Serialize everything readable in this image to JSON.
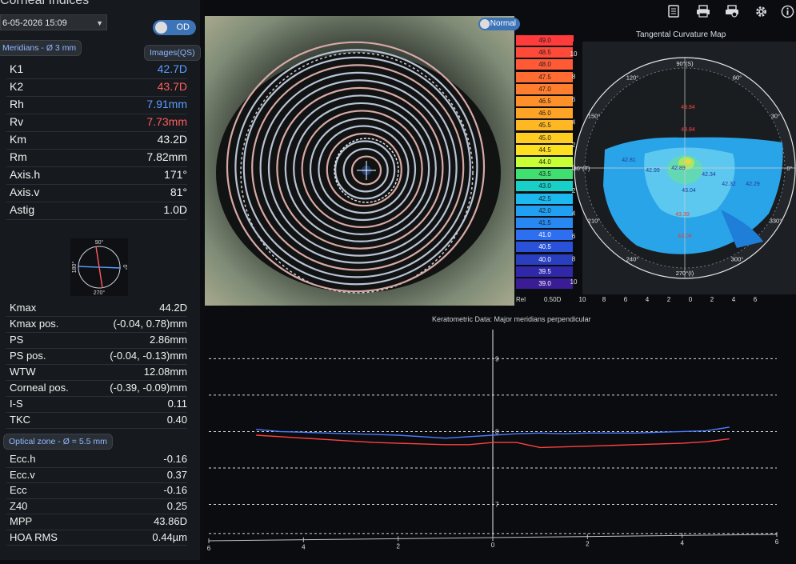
{
  "header": {
    "title": "Corneal Indices",
    "date": "6-05-2026 15:09",
    "eye_toggle": "OD"
  },
  "meridians": {
    "label": "Meridians - Ø 3 mm",
    "images_button": "Images(QS)"
  },
  "k_values": [
    {
      "label": "K1",
      "value": "42.7D",
      "color": "#5b9dff"
    },
    {
      "label": "K2",
      "value": "43.7D",
      "color": "#ff5d5d"
    },
    {
      "label": "Rh",
      "value": "7.91mm",
      "color": "#5b9dff"
    },
    {
      "label": "Rv",
      "value": "7.73mm",
      "color": "#ff5d5d"
    },
    {
      "label": "Km",
      "value": "43.2D",
      "color": "#f2f2f2"
    },
    {
      "label": "Rm",
      "value": "7.82mm",
      "color": "#f2f2f2"
    },
    {
      "label": "Axis.h",
      "value": "171°",
      "color": "#f2f2f2"
    },
    {
      "label": "Axis.v",
      "value": "81°",
      "color": "#f2f2f2"
    },
    {
      "label": "Astig",
      "value": "1.0D",
      "color": "#f2f2f2"
    }
  ],
  "axis_diagram": {
    "top": "90°",
    "bottom": "270°",
    "left": "180°",
    "right": "0°"
  },
  "shape_indices": [
    {
      "label": "Kmax",
      "value": "44.2D"
    },
    {
      "label": "Kmax pos.",
      "value": "(-0.04, 0.78)mm"
    },
    {
      "label": "PS",
      "value": "2.86mm"
    },
    {
      "label": "PS pos.",
      "value": "(-0.04, -0.13)mm"
    },
    {
      "label": "WTW",
      "value": "12.08mm"
    },
    {
      "label": "Corneal pos.",
      "value": "(-0.39, -0.09)mm"
    },
    {
      "label": "I-S",
      "value": "0.11"
    },
    {
      "label": "TKC",
      "value": "0.40"
    }
  ],
  "optical_zone": {
    "label": "Optical zone - Ø = 5.5 mm"
  },
  "optical_indices": [
    {
      "label": "Ecc.h",
      "value": "-0.16"
    },
    {
      "label": "Ecc.v",
      "value": "0.37"
    },
    {
      "label": "Ecc",
      "value": "-0.16"
    },
    {
      "label": "Z40",
      "value": "0.25"
    },
    {
      "label": "MPP",
      "value": "43.86D"
    },
    {
      "label": "HOA RMS",
      "value": "0.44µm"
    }
  ],
  "toolbar": {
    "icons": [
      "document-icon",
      "printer-icon",
      "print-preview-icon",
      "gear-icon",
      "info-icon"
    ]
  },
  "image_toggle": "Normal",
  "color_scale": {
    "values": [
      "49.0",
      "48.5",
      "48.0",
      "47.5",
      "47.0",
      "46.5",
      "46.0",
      "45.5",
      "45.0",
      "44.5",
      "44.0",
      "43.5",
      "43.0",
      "42.5",
      "42.0",
      "41.5",
      "41.0",
      "40.5",
      "40.0",
      "39.5",
      "39.0"
    ],
    "colors": [
      "#ff3b3b",
      "#ff4a3a",
      "#ff5a35",
      "#ff6b30",
      "#ff7d2c",
      "#ff8f28",
      "#ffa326",
      "#ffb824",
      "#ffcc22",
      "#ffe020",
      "#c8ff35",
      "#40e070",
      "#18d0c8",
      "#1cb8f0",
      "#1fa0f2",
      "#2688f0",
      "#2e6ef0",
      "#2a52d8",
      "#2a3ec0",
      "#3028a8",
      "#3a1d95"
    ],
    "rel_label": "Rel",
    "step_label": "0.50D",
    "right_ticks": [
      "10",
      "8",
      "6",
      "4",
      "2",
      "0",
      "2",
      "4",
      "6",
      "8",
      "10"
    ]
  },
  "map": {
    "title": "Tangental Curvature Map",
    "angle_labels": [
      "90°(S)",
      "60°",
      "30°",
      "0°",
      "330°",
      "300°",
      "270°(I)",
      "240°",
      "210°",
      "180°(T)",
      "150°",
      "120°"
    ],
    "bottom_ticks": [
      "10",
      "8",
      "6",
      "4",
      "2",
      "0",
      "2",
      "4",
      "6"
    ],
    "point_values": [
      "43.84",
      "43.84",
      "42.81",
      "42.99",
      "42.89",
      "42.34",
      "42.32",
      "42.29",
      "43.04",
      "43.39",
      "43.04"
    ]
  },
  "graph": {
    "title": "Keratometric Data: Major meridians perpendicular",
    "y_labels": [
      "9",
      "8",
      "7"
    ],
    "x_ticks": [
      "6",
      "4",
      "2",
      "0",
      "2",
      "4",
      "6"
    ]
  },
  "chart_data": {
    "type": "line",
    "title": "Keratometric Data: Major meridians perpendicular",
    "xlabel": "",
    "ylabel": "",
    "x": [
      -5.0,
      -4.5,
      -4.0,
      -3.5,
      -3.0,
      -2.5,
      -2.0,
      -1.5,
      -1.0,
      -0.5,
      0.0,
      0.5,
      1.0,
      1.5,
      2.0,
      2.5,
      3.0,
      3.5,
      4.0,
      4.5,
      5.0
    ],
    "series": [
      {
        "color": "#4a7cff",
        "values": [
          8.03,
          8.0,
          7.99,
          7.98,
          7.97,
          7.96,
          7.95,
          7.93,
          7.91,
          7.93,
          7.95,
          7.97,
          7.98,
          7.97,
          7.98,
          7.98,
          7.98,
          7.99,
          8.0,
          8.01,
          8.06
        ]
      },
      {
        "color": "#ff4040",
        "values": [
          7.95,
          7.93,
          7.91,
          7.89,
          7.87,
          7.85,
          7.84,
          7.83,
          7.82,
          7.82,
          7.85,
          7.85,
          7.78,
          7.79,
          7.8,
          7.81,
          7.82,
          7.83,
          7.84,
          7.86,
          7.9
        ]
      }
    ],
    "xlim": [
      -6,
      6
    ],
    "ylim": [
      6.5,
      9.4
    ],
    "grid": true
  }
}
